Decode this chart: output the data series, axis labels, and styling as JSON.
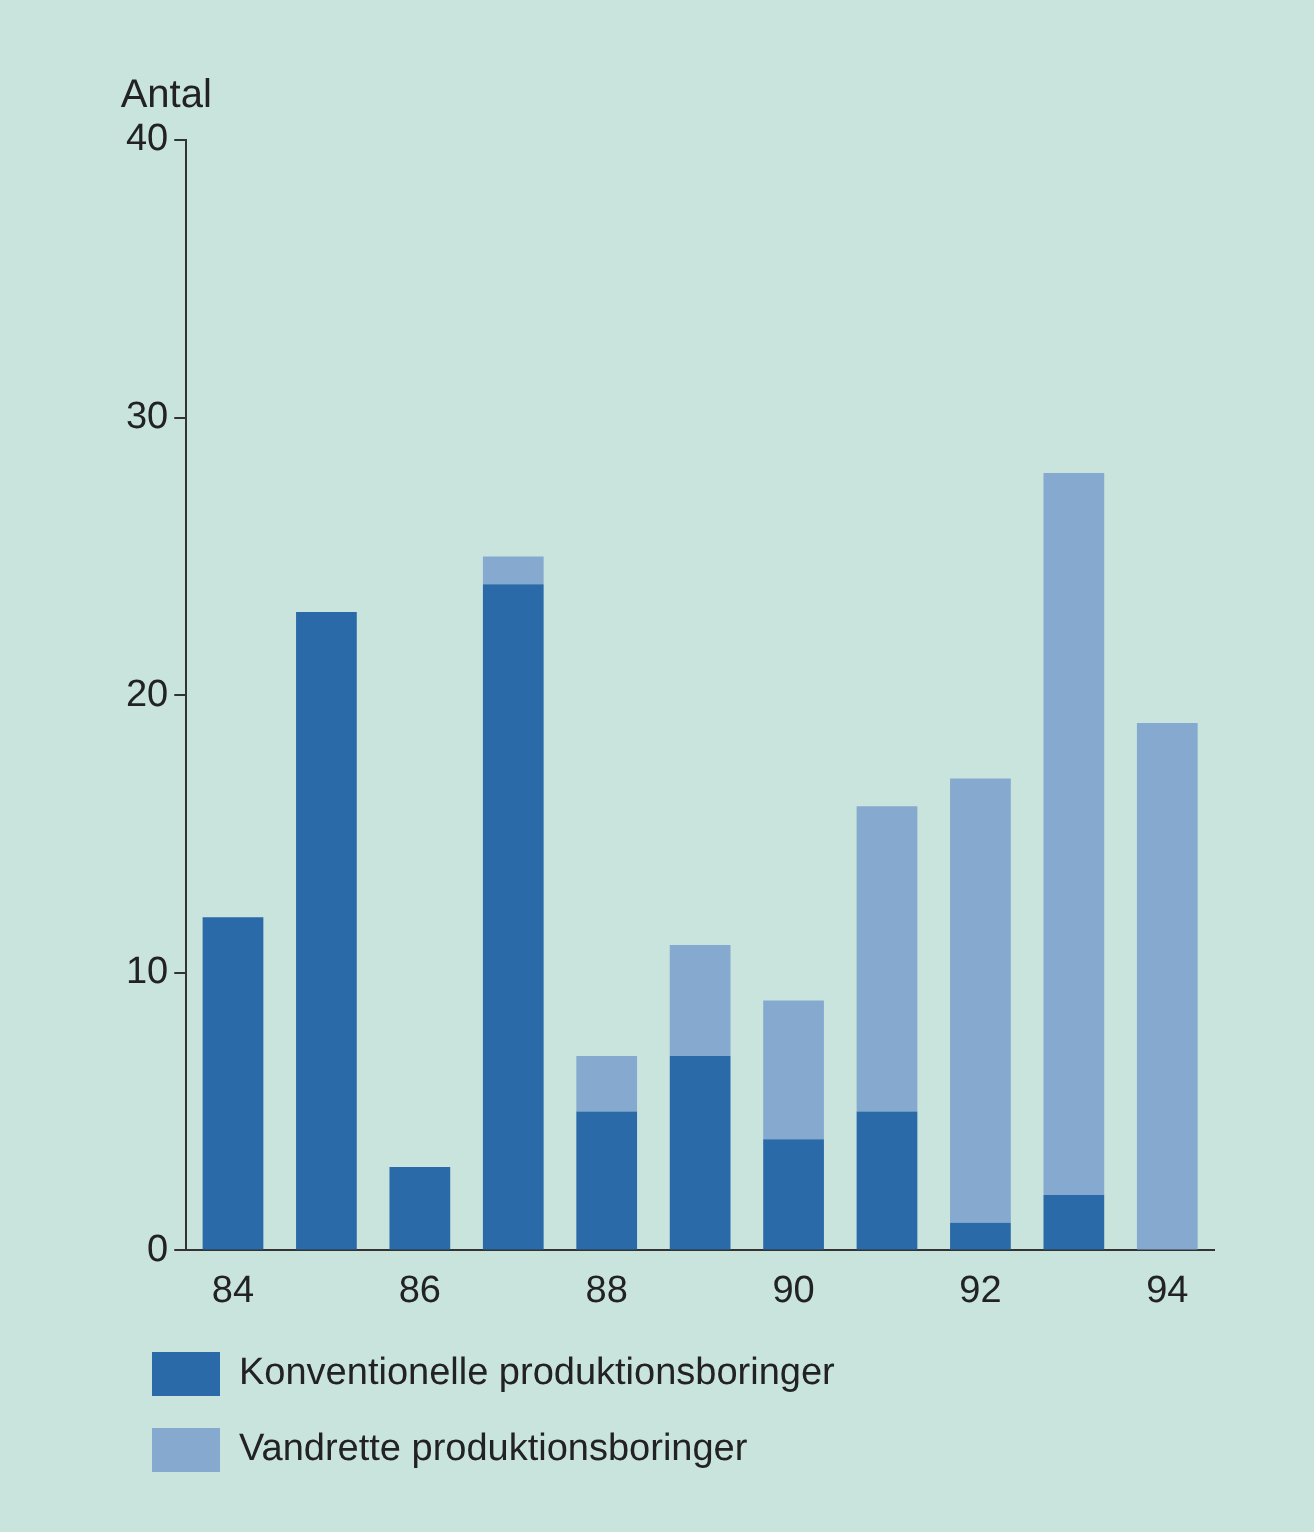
{
  "chart_data": {
    "type": "bar",
    "ylabel": "Antal",
    "stacked": true,
    "categories": [
      "84",
      null,
      "86",
      null,
      "88",
      null,
      "90",
      null,
      "92",
      null,
      "94"
    ],
    "series": [
      {
        "name": "Konventionelle produktionsboringer",
        "color": "#2a6aa8",
        "values": [
          12,
          23,
          3,
          24,
          5,
          7,
          4,
          5,
          1,
          2,
          0
        ]
      },
      {
        "name": "Vandrette produktionsboringer",
        "color": "#86a9cf",
        "values": [
          0,
          0,
          0,
          1,
          2,
          4,
          5,
          11,
          16,
          26,
          19
        ]
      }
    ],
    "ylim": [
      0,
      40
    ],
    "yticks": [
      0,
      10,
      20,
      30,
      40
    ],
    "grid": false,
    "legend": "bottom"
  }
}
